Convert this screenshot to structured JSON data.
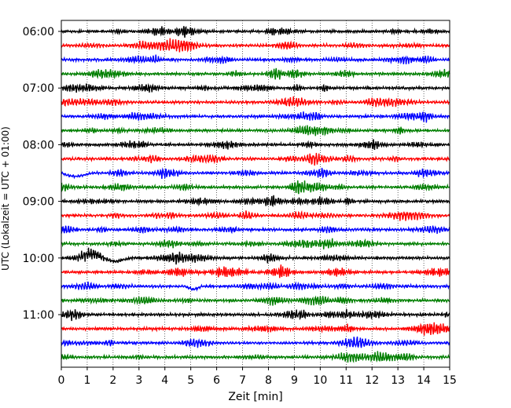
{
  "chart_data": {
    "type": "line",
    "xlabel": "Zeit  [min]",
    "ylabel": "UTC (Lokalzeit = UTC + 01:00)",
    "xlim": [
      0,
      15
    ],
    "x_ticks": [
      0,
      1,
      2,
      3,
      4,
      5,
      6,
      7,
      8,
      9,
      10,
      11,
      12,
      13,
      14,
      15
    ],
    "x_tick_labels": [
      "0",
      "1",
      "2",
      "3",
      "4",
      "5",
      "6",
      "7",
      "8",
      "9",
      "10",
      "11",
      "12",
      "13",
      "14",
      "15"
    ],
    "y_tick_labels": [
      "06:00",
      "07:00",
      "08:00",
      "09:00",
      "10:00",
      "11:00"
    ],
    "trace_interval_minutes": 15,
    "trace_colors": [
      "#000000",
      "#ff0000",
      "#0000ff",
      "#007f00"
    ],
    "grid": "vertical dotted lines at each minute",
    "series": [
      {
        "start": "06:00",
        "color": "#000000"
      },
      {
        "start": "06:15",
        "color": "#ff0000"
      },
      {
        "start": "06:30",
        "color": "#0000ff"
      },
      {
        "start": "06:45",
        "color": "#007f00"
      },
      {
        "start": "07:00",
        "color": "#000000"
      },
      {
        "start": "07:15",
        "color": "#ff0000"
      },
      {
        "start": "07:30",
        "color": "#0000ff"
      },
      {
        "start": "07:45",
        "color": "#007f00"
      },
      {
        "start": "08:00",
        "color": "#000000"
      },
      {
        "start": "08:15",
        "color": "#ff0000"
      },
      {
        "start": "08:30",
        "color": "#0000ff"
      },
      {
        "start": "08:45",
        "color": "#007f00"
      },
      {
        "start": "09:00",
        "color": "#000000"
      },
      {
        "start": "09:15",
        "color": "#ff0000"
      },
      {
        "start": "09:30",
        "color": "#0000ff"
      },
      {
        "start": "09:45",
        "color": "#007f00"
      },
      {
        "start": "10:00",
        "color": "#000000"
      },
      {
        "start": "10:15",
        "color": "#ff0000"
      },
      {
        "start": "10:30",
        "color": "#0000ff"
      },
      {
        "start": "10:45",
        "color": "#007f00"
      },
      {
        "start": "11:00",
        "color": "#000000"
      },
      {
        "start": "11:15",
        "color": "#ff0000"
      },
      {
        "start": "11:30",
        "color": "#0000ff"
      },
      {
        "start": "11:45",
        "color": "#007f00"
      }
    ],
    "notable_events": [
      {
        "trace": "08:30",
        "x_range": [
          0,
          1.2
        ],
        "description": "low-frequency dip"
      },
      {
        "trace": "10:00",
        "x_range": [
          0.5,
          3.0
        ],
        "description": "large low-frequency oscillation"
      },
      {
        "trace": "10:30",
        "x_range": [
          4.8,
          5.4
        ],
        "description": "small dip"
      }
    ]
  }
}
